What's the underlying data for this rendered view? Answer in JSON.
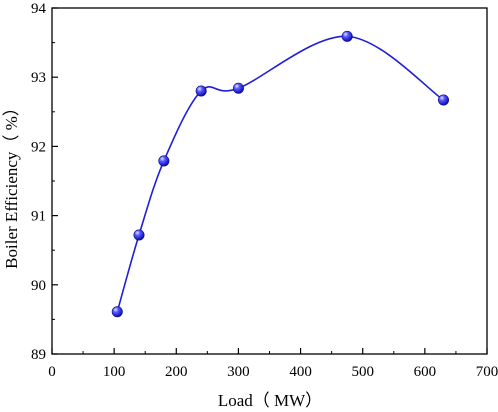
{
  "chart_data": {
    "type": "line",
    "xlabel": "Load（ MW）",
    "ylabel": "Boiler Efficiency（ %）",
    "xlim": [
      0,
      700
    ],
    "ylim": [
      89,
      94
    ],
    "xticks": [
      0,
      100,
      200,
      300,
      400,
      500,
      600,
      700
    ],
    "yticks": [
      89,
      90,
      91,
      92,
      93,
      94
    ],
    "grid": false,
    "smooth": true,
    "series": [
      {
        "x": [
          105,
          140,
          180,
          240,
          300,
          475,
          630
        ],
        "y": [
          89.61,
          90.72,
          91.79,
          92.8,
          92.84,
          93.59,
          92.67
        ]
      }
    ],
    "colors": {
      "line": "#1f1fd6",
      "marker": "#1a1aff",
      "axis": "#000000"
    }
  }
}
